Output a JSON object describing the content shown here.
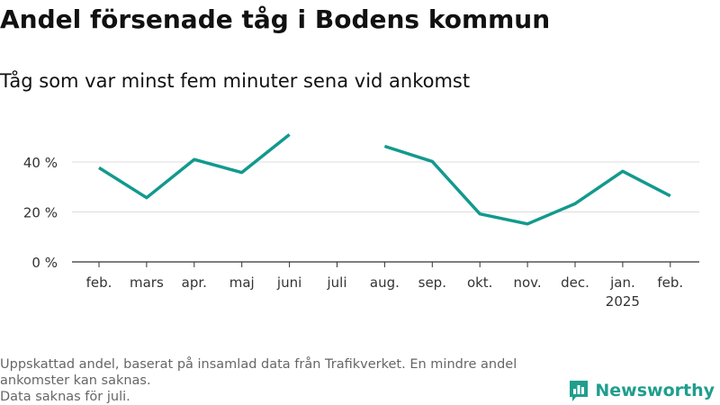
{
  "title": "Andel försenade tåg i Bodens kommun",
  "subtitle": "Tåg som var minst fem minuter sena vid ankomst",
  "footnote_lines": [
    "Uppskattad andel, baserat på insamlad data från Trafikverket. En mindre andel",
    "ankomster kan saknas.",
    "Data saknas för juli."
  ],
  "brand": "Newsworthy",
  "colors": {
    "line": "#13998e",
    "grid": "#dddddd",
    "axis": "#333333",
    "brand": "#1f9e8e"
  },
  "chart_data": {
    "type": "line",
    "categories": [
      "feb.",
      "mars",
      "apr.",
      "maj",
      "juni",
      "juli",
      "aug.",
      "sep.",
      "okt.",
      "nov.",
      "dec.",
      "jan.",
      "feb."
    ],
    "category_sublabels": [
      "",
      "",
      "",
      "",
      "",
      "",
      "",
      "",
      "",
      "",
      "",
      "2025",
      ""
    ],
    "values": [
      37.7,
      25.7,
      41,
      35.8,
      51,
      null,
      46.3,
      40.2,
      19.2,
      15.2,
      23.3,
      36.3,
      26.4
    ],
    "y_ticks": [
      0,
      20,
      40
    ],
    "y_tick_labels": [
      "0 %",
      "20 %",
      "40 %"
    ],
    "ylim": [
      0,
      55
    ],
    "xlabel": "",
    "ylabel": "",
    "grid": true,
    "unit": "%"
  }
}
